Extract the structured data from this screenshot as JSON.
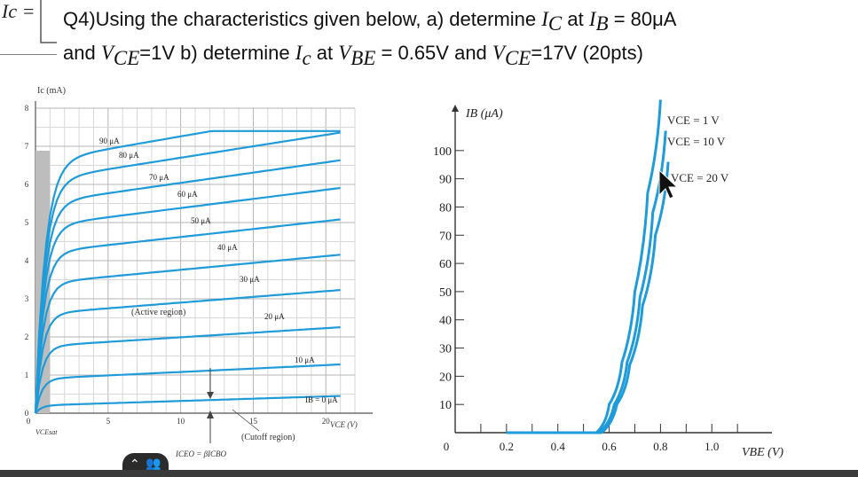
{
  "header": {
    "corner_label": "Ic =",
    "q_prefix": "Q4)Using the characteristics given below, a) determine ",
    "q_ic": "I",
    "q_ic_sub": "C",
    "q_at1": " at ",
    "q_ib": "I",
    "q_ib_sub": "B",
    "q_eq1": " = 80μA",
    "q_line2_a": "and ",
    "q_vce": "V",
    "q_vce_sub": "CE",
    "q_line2_b": "=1V b) determine ",
    "q_ic2": "I",
    "q_ic2_sub": "c",
    "q_at2": " at ",
    "q_vbe": "V",
    "q_vbe_sub": "BE",
    "q_eq2": " = 0.65V and ",
    "q_vce2": "V",
    "q_vce2_sub": "CE",
    "q_tail": "=17V  (20pts)"
  },
  "chart_data": [
    {
      "type": "line",
      "ylabel": "Ic (mA)",
      "xlabel": "VCE (V)",
      "x_ticks": [
        "0",
        "5",
        "10",
        "15",
        "20"
      ],
      "y_ticks": [
        "0",
        "1",
        "2",
        "3",
        "4",
        "5",
        "6",
        "7",
        "8"
      ],
      "xlim": [
        0,
        22
      ],
      "ylim": [
        0,
        8
      ],
      "grid": true,
      "series": [
        {
          "name": "IB = 0 μA",
          "saturation_current_mA": 0.2
        },
        {
          "name": "10 μA",
          "saturation_current_mA": 0.9
        },
        {
          "name": "20 μA",
          "saturation_current_mA": 1.75
        },
        {
          "name": "30 μA",
          "saturation_current_mA": 2.6
        },
        {
          "name": "40 μA",
          "saturation_current_mA": 3.4
        },
        {
          "name": "50 μA",
          "saturation_current_mA": 4.2
        },
        {
          "name": "60 μA",
          "saturation_current_mA": 4.9
        },
        {
          "name": "70 μA",
          "saturation_current_mA": 5.5
        },
        {
          "name": "80 μA",
          "saturation_current_mA": 6.1
        },
        {
          "name": "90 μA",
          "saturation_current_mA": 6.6
        }
      ],
      "curve_labels": [
        "90 μA",
        "80 μA",
        "70 μA",
        "60 μA",
        "50 μA",
        "40 μA",
        "30 μA",
        "20 μA",
        "10 μA",
        "IB = 0 μA"
      ],
      "annotations": {
        "active_region": "(Active region)",
        "cutoff_region": "(Cutoff region)",
        "iceo": "ICEO = βICBO",
        "vce_sat": "VCEsat"
      }
    },
    {
      "type": "line",
      "ylabel": "IB (μA)",
      "xlabel": "VBE (V)",
      "x_ticks": [
        "0",
        "0.2",
        "0.4",
        "0.6",
        "0.8",
        "1.0"
      ],
      "y_ticks": [
        "10",
        "20",
        "30",
        "40",
        "50",
        "60",
        "70",
        "80",
        "90",
        "100"
      ],
      "xlim": [
        0,
        1.2
      ],
      "ylim": [
        0,
        110
      ],
      "series": [
        {
          "name": "VCE = 1 V",
          "x": [
            0.55,
            0.6,
            0.65,
            0.7,
            0.75,
            0.8
          ],
          "y": [
            0,
            10,
            25,
            50,
            85,
            118
          ]
        },
        {
          "name": "VCE = 10 V",
          "x": [
            0.56,
            0.62,
            0.67,
            0.72,
            0.77,
            0.82
          ],
          "y": [
            0,
            10,
            25,
            48,
            78,
            107
          ]
        },
        {
          "name": "VCE = 20 V",
          "x": [
            0.57,
            0.63,
            0.68,
            0.73,
            0.78,
            0.83
          ],
          "y": [
            0,
            10,
            24,
            45,
            70,
            96
          ]
        }
      ]
    }
  ]
}
